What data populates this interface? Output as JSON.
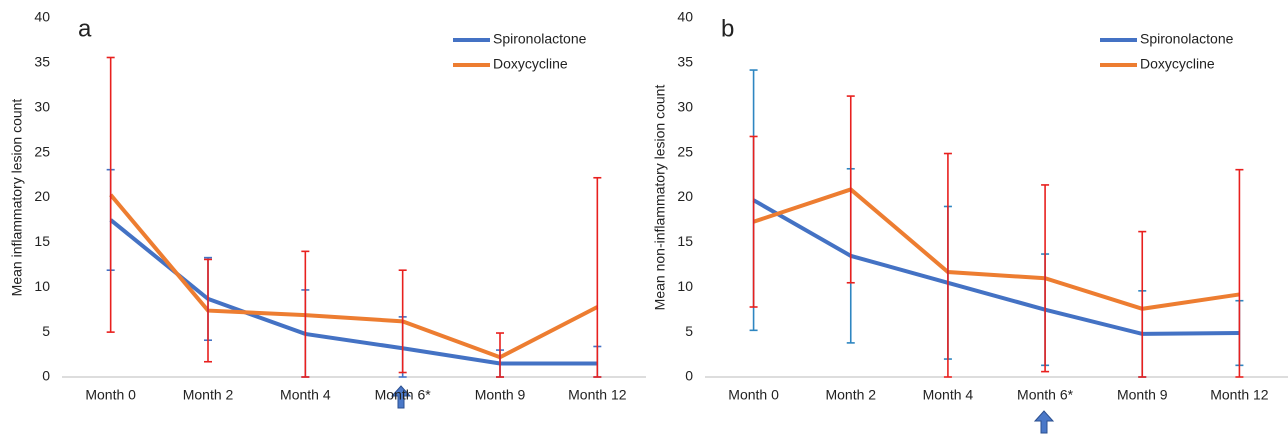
{
  "chart_data": [
    {
      "type": "line",
      "panel_label": "a",
      "y_label": "Mean inflammatory lesion count",
      "categories": [
        "Month 0",
        "Month 2",
        "Month 4",
        "Month 6*",
        "Month 9",
        "Month 12"
      ],
      "ylim": [
        0,
        40
      ],
      "yticks": [
        0,
        5,
        10,
        15,
        20,
        25,
        30,
        35,
        40
      ],
      "series": [
        {
          "name": "Spironolactone",
          "color": "#4472c4",
          "error_color": "#4472c4",
          "values": [
            17.5,
            8.7,
            4.8,
            3.2,
            1.5,
            1.5
          ],
          "errors": [
            5.6,
            4.6,
            4.9,
            3.5,
            1.5,
            1.9
          ]
        },
        {
          "name": "Doxycycline",
          "color": "#ed7d31",
          "error_color": "#e8201e",
          "values": [
            20.3,
            7.4,
            6.9,
            6.2,
            2.2,
            7.8
          ],
          "errors": [
            15.3,
            5.7,
            7.1,
            5.7,
            2.7,
            14.4
          ]
        }
      ]
    },
    {
      "type": "line",
      "panel_label": "b",
      "y_label": "Mean non-inflammatory lesion count",
      "categories": [
        "Month 0",
        "Month 2",
        "Month 4",
        "Month 6*",
        "Month 9",
        "Month 12"
      ],
      "ylim": [
        0,
        40
      ],
      "yticks": [
        0,
        5,
        10,
        15,
        20,
        25,
        30,
        35,
        40
      ],
      "series": [
        {
          "name": "Spironolactone",
          "color": "#4472c4",
          "error_color": "#2e86c1",
          "values": [
            19.7,
            13.5,
            10.5,
            7.5,
            4.8,
            4.9
          ],
          "errors": [
            14.5,
            9.7,
            8.5,
            6.2,
            4.8,
            3.6
          ]
        },
        {
          "name": "Doxycycline",
          "color": "#ed7d31",
          "error_color": "#e8201e",
          "values": [
            17.3,
            20.9,
            11.7,
            11.0,
            7.6,
            9.2
          ],
          "errors": [
            9.5,
            10.4,
            13.2,
            10.4,
            8.6,
            13.9
          ]
        }
      ]
    }
  ]
}
